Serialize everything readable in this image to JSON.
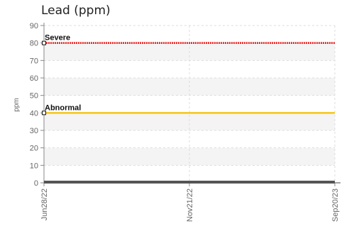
{
  "chart_data": {
    "type": "line",
    "title": "Lead (ppm)",
    "xlabel": "",
    "ylabel": "ppm",
    "ylim": [
      0,
      90
    ],
    "y_ticks": [
      0,
      10,
      20,
      30,
      40,
      50,
      60,
      70,
      80,
      90
    ],
    "x_ticks": [
      "Jun28/22",
      "Nov21/22",
      "Sep20/23"
    ],
    "grid": true,
    "series": [
      {
        "values": [
          0,
          0,
          0
        ],
        "color": "#555555"
      }
    ],
    "thresholds": [
      {
        "name": "Severe",
        "value": 80,
        "color": "#e8201e"
      },
      {
        "name": "Abnormal",
        "value": 40,
        "color": "#f5c518"
      }
    ]
  }
}
